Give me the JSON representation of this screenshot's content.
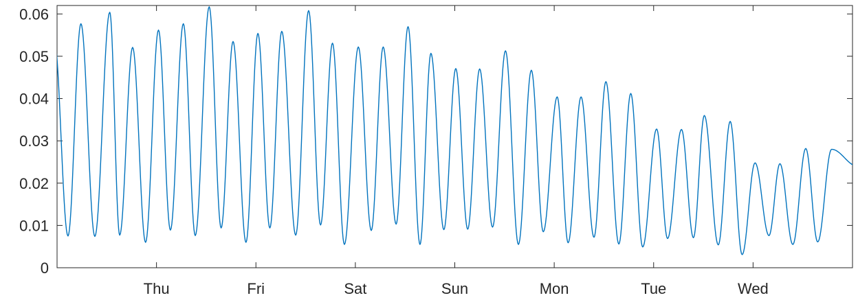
{
  "chart_data": {
    "type": "line",
    "title": "",
    "xlabel": "",
    "ylabel": "",
    "ylim": [
      0,
      0.062
    ],
    "yticks": [
      0,
      0.01,
      0.02,
      0.03,
      0.04,
      0.05,
      0.06
    ],
    "ytick_labels": [
      "0",
      "0.01",
      "0.02",
      "0.03",
      "0.04",
      "0.05",
      "0.06"
    ],
    "xlim": [
      0,
      8
    ],
    "xticks": [
      1,
      2,
      3,
      4,
      5,
      6,
      7
    ],
    "xtick_labels": [
      "Thu",
      "Fri",
      "Sat",
      "Sun",
      "Mon",
      "Tue",
      "Wed"
    ],
    "grid": false,
    "line_color": "#0072BD",
    "x_units": "days since start of plotted window",
    "series": [
      {
        "peaks_x": [
          -0.03,
          0.24,
          0.53,
          0.76,
          1.02,
          1.27,
          1.53,
          1.77,
          2.02,
          2.26,
          2.53,
          2.77,
          3.03,
          3.28,
          3.53,
          3.76,
          4.01,
          4.25,
          4.51,
          4.77,
          5.03,
          5.27,
          5.52,
          5.77,
          6.03,
          6.28,
          6.51,
          6.77,
          7.02,
          7.27,
          7.53,
          7.79,
          8.05
        ],
        "peaks_y": [
          0.0545,
          0.0577,
          0.0604,
          0.0521,
          0.0562,
          0.0577,
          0.0617,
          0.0535,
          0.0554,
          0.0559,
          0.0608,
          0.0531,
          0.0522,
          0.0522,
          0.057,
          0.0507,
          0.0471,
          0.047,
          0.0513,
          0.0467,
          0.0404,
          0.0404,
          0.044,
          0.0412,
          0.0328,
          0.0327,
          0.036,
          0.0346,
          0.0248,
          0.0246,
          0.0282,
          0.028,
          0.024
        ],
        "troughs_x": [
          0.11,
          0.38,
          0.63,
          0.89,
          1.14,
          1.39,
          1.65,
          1.9,
          2.14,
          2.4,
          2.65,
          2.89,
          3.16,
          3.41,
          3.65,
          3.89,
          4.13,
          4.38,
          4.64,
          4.89,
          5.14,
          5.4,
          5.65,
          5.89,
          6.14,
          6.4,
          6.65,
          6.89,
          7.16,
          7.4,
          7.65
        ],
        "troughs_y": [
          0.0075,
          0.0074,
          0.0077,
          0.006,
          0.0089,
          0.0076,
          0.0094,
          0.006,
          0.0094,
          0.0077,
          0.0101,
          0.0055,
          0.0088,
          0.0103,
          0.0055,
          0.009,
          0.0091,
          0.0096,
          0.0055,
          0.0085,
          0.0059,
          0.0072,
          0.0056,
          0.0049,
          0.0069,
          0.0071,
          0.0054,
          0.0031,
          0.0076,
          0.0055,
          0.0061
        ]
      }
    ]
  }
}
